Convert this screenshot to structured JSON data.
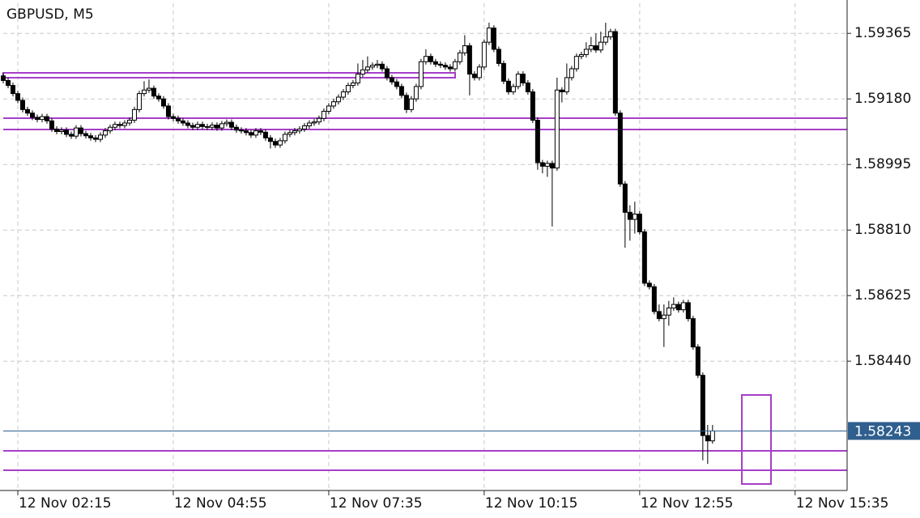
{
  "chart_data": {
    "type": "candlestick",
    "title": "GBPUSD, M5",
    "open": [
      1.59245,
      1.59232,
      1.59218,
      1.59195,
      1.59176,
      1.5915,
      1.5914,
      1.59128,
      1.59122,
      1.5913,
      1.59118,
      1.59095,
      1.59088,
      1.59092,
      1.5908,
      1.59075,
      1.59098,
      1.59082,
      1.59076,
      1.5907,
      1.59066,
      1.59078,
      1.5909,
      1.591,
      1.59108,
      1.59105,
      1.59112,
      1.5912,
      1.5915,
      1.59195,
      1.59205,
      1.5921,
      1.59188,
      1.5918,
      1.5916,
      1.5913,
      1.59125,
      1.59118,
      1.59112,
      1.59105,
      1.591,
      1.59108,
      1.59102,
      1.591,
      1.59106,
      1.59098,
      1.5911,
      1.59114,
      1.591,
      1.59092,
      1.5909,
      1.59085,
      1.59078,
      1.5909,
      1.59086,
      1.5907,
      1.5906,
      1.5905,
      1.59062,
      1.5908,
      1.59085,
      1.5909,
      1.59095,
      1.59104,
      1.59112,
      1.59115,
      1.59125,
      1.59145,
      1.5916,
      1.59172,
      1.59185,
      1.592,
      1.59218,
      1.59225,
      1.5925,
      1.59262,
      1.5927,
      1.59275,
      1.59278,
      1.59265,
      1.5924,
      1.59228,
      1.59215,
      1.5919,
      1.5915,
      1.5918,
      1.59215,
      1.59285,
      1.593,
      1.59285,
      1.59278,
      1.59275,
      1.5927,
      1.59265,
      1.59285,
      1.5931,
      1.5933,
      1.5925,
      1.5924,
      1.5927,
      1.5934,
      1.5938,
      1.5932,
      1.5928,
      1.5923,
      1.592,
      1.59215,
      1.5925,
      1.59225,
      1.592,
      1.5912,
      1.59,
      1.5899,
      1.58998,
      1.58985,
      1.59205,
      1.592,
      1.5924,
      1.59265,
      1.593,
      1.59305,
      1.5932,
      1.5933,
      1.59318,
      1.5934,
      1.59355,
      1.5937,
      1.5914,
      1.5894,
      1.5886,
      1.5884,
      1.58855,
      1.58805,
      1.5866,
      1.5865,
      1.5858,
      1.5856,
      1.5857,
      1.5859,
      1.586,
      1.58585,
      1.58605,
      1.5856,
      1.5848,
      1.584,
      1.5823,
      1.58215
    ],
    "high": [
      1.59253,
      1.5924,
      1.59226,
      1.59203,
      1.59184,
      1.59158,
      1.59148,
      1.59136,
      1.59138,
      1.59138,
      1.59126,
      1.59103,
      1.591,
      1.591,
      1.59088,
      1.59106,
      1.59106,
      1.5909,
      1.59084,
      1.59078,
      1.59086,
      1.59098,
      1.59108,
      1.59116,
      1.59116,
      1.5912,
      1.59128,
      1.59158,
      1.59203,
      1.5923,
      1.59235,
      1.59218,
      1.59196,
      1.59188,
      1.59168,
      1.59138,
      1.59133,
      1.59126,
      1.5912,
      1.59113,
      1.59116,
      1.59116,
      1.5911,
      1.59114,
      1.59114,
      1.59118,
      1.59122,
      1.59122,
      1.59108,
      1.591,
      1.59098,
      1.59093,
      1.59098,
      1.59098,
      1.59094,
      1.59078,
      1.59068,
      1.5907,
      1.59088,
      1.59093,
      1.59098,
      1.59103,
      1.59112,
      1.5912,
      1.59123,
      1.59133,
      1.59153,
      1.59168,
      1.5918,
      1.59193,
      1.59208,
      1.59226,
      1.59233,
      1.5928,
      1.5929,
      1.593,
      1.59283,
      1.5929,
      1.59286,
      1.59273,
      1.59248,
      1.59236,
      1.59223,
      1.59198,
      1.59188,
      1.59223,
      1.59293,
      1.5932,
      1.59308,
      1.59293,
      1.59286,
      1.59283,
      1.59278,
      1.59293,
      1.59318,
      1.5936,
      1.59338,
      1.59258,
      1.59278,
      1.59348,
      1.59395,
      1.59388,
      1.59328,
      1.59288,
      1.59238,
      1.59223,
      1.59258,
      1.59258,
      1.59233,
      1.59208,
      1.59128,
      1.59008,
      1.59006,
      1.59006,
      1.5924,
      1.59213,
      1.5928,
      1.59273,
      1.59308,
      1.59313,
      1.5934,
      1.59355,
      1.59365,
      1.5937,
      1.59395,
      1.59378,
      1.59378,
      1.59148,
      1.58948,
      1.5888,
      1.5889,
      1.58863,
      1.58813,
      1.58668,
      1.58658,
      1.586,
      1.586,
      1.5861,
      1.5862,
      1.58608,
      1.58613,
      1.58613,
      1.58568,
      1.58488,
      1.58408,
      1.5826,
      1.5826
    ],
    "low": [
      1.59224,
      1.5921,
      1.59187,
      1.59168,
      1.59142,
      1.59132,
      1.5912,
      1.59114,
      1.59114,
      1.5911,
      1.59087,
      1.5908,
      1.5908,
      1.59072,
      1.59067,
      1.59067,
      1.59074,
      1.59068,
      1.59062,
      1.59058,
      1.59058,
      1.5907,
      1.59082,
      1.59092,
      1.59097,
      1.59097,
      1.59104,
      1.59112,
      1.59142,
      1.59187,
      1.59197,
      1.5918,
      1.59172,
      1.59152,
      1.59122,
      1.59117,
      1.5911,
      1.59104,
      1.59097,
      1.59092,
      1.59092,
      1.59094,
      1.59092,
      1.59092,
      1.5909,
      1.5909,
      1.59102,
      1.59092,
      1.59084,
      1.59082,
      1.59077,
      1.5907,
      1.5907,
      1.59078,
      1.59062,
      1.5904,
      1.59042,
      1.59042,
      1.59054,
      1.59072,
      1.59077,
      1.59082,
      1.59087,
      1.59096,
      1.59104,
      1.59107,
      1.59117,
      1.59137,
      1.59152,
      1.59164,
      1.59177,
      1.59192,
      1.5921,
      1.59217,
      1.59242,
      1.59254,
      1.59262,
      1.59267,
      1.59257,
      1.59232,
      1.5922,
      1.59207,
      1.59182,
      1.5914,
      1.59142,
      1.59172,
      1.59207,
      1.59277,
      1.59277,
      1.5927,
      1.59267,
      1.59262,
      1.59257,
      1.59257,
      1.59277,
      1.59302,
      1.5919,
      1.59232,
      1.59232,
      1.59262,
      1.59332,
      1.59312,
      1.59272,
      1.59222,
      1.59192,
      1.59192,
      1.59207,
      1.59217,
      1.59192,
      1.59112,
      1.5898,
      1.5897,
      1.5896,
      1.5882,
      1.58977,
      1.5917,
      1.59192,
      1.59232,
      1.59257,
      1.59292,
      1.59297,
      1.59312,
      1.5931,
      1.5931,
      1.59332,
      1.59347,
      1.59132,
      1.58932,
      1.5876,
      1.5878,
      1.588,
      1.58797,
      1.58652,
      1.58642,
      1.58572,
      1.58552,
      1.5848,
      1.5854,
      1.58582,
      1.58577,
      1.58577,
      1.58552,
      1.58472,
      1.58392,
      1.5816,
      1.5815,
      1.58207
    ],
    "close": [
      1.59232,
      1.59218,
      1.59195,
      1.59176,
      1.5915,
      1.5914,
      1.59128,
      1.59122,
      1.5913,
      1.59118,
      1.59095,
      1.59088,
      1.59092,
      1.5908,
      1.59075,
      1.59098,
      1.59082,
      1.59076,
      1.5907,
      1.59066,
      1.59078,
      1.5909,
      1.591,
      1.59108,
      1.59105,
      1.59112,
      1.5912,
      1.5915,
      1.59195,
      1.59205,
      1.5921,
      1.59188,
      1.5918,
      1.5916,
      1.5913,
      1.59125,
      1.59118,
      1.59112,
      1.59105,
      1.591,
      1.59108,
      1.59102,
      1.591,
      1.59106,
      1.59098,
      1.5911,
      1.59114,
      1.591,
      1.59092,
      1.5909,
      1.59085,
      1.59078,
      1.5909,
      1.59086,
      1.5907,
      1.5906,
      1.5905,
      1.59062,
      1.5908,
      1.59085,
      1.5909,
      1.59095,
      1.59104,
      1.59112,
      1.59115,
      1.59125,
      1.59145,
      1.5916,
      1.59172,
      1.59185,
      1.592,
      1.59218,
      1.59225,
      1.5925,
      1.59262,
      1.5927,
      1.59275,
      1.59278,
      1.59265,
      1.5924,
      1.59228,
      1.59215,
      1.5919,
      1.5915,
      1.5918,
      1.59215,
      1.59285,
      1.593,
      1.59285,
      1.59278,
      1.59275,
      1.5927,
      1.59265,
      1.59285,
      1.5931,
      1.5933,
      1.5925,
      1.5924,
      1.5927,
      1.5934,
      1.5938,
      1.5932,
      1.5928,
      1.5923,
      1.592,
      1.59215,
      1.5925,
      1.59225,
      1.592,
      1.5912,
      1.59,
      1.5899,
      1.58998,
      1.58985,
      1.59205,
      1.592,
      1.5924,
      1.59265,
      1.593,
      1.59305,
      1.5932,
      1.5933,
      1.59318,
      1.5934,
      1.59355,
      1.5937,
      1.5914,
      1.5894,
      1.5886,
      1.5884,
      1.58855,
      1.58805,
      1.5866,
      1.5865,
      1.5858,
      1.5856,
      1.5857,
      1.5859,
      1.586,
      1.58585,
      1.58605,
      1.5856,
      1.5848,
      1.584,
      1.5823,
      1.58215,
      1.58243
    ],
    "up_color": "#ffffff",
    "down_color": "#000000",
    "wick_color": "#000000",
    "last_price": 1.58243,
    "last_price_color": "#2f5f8e",
    "ylim": [
      1.58075,
      1.5945
    ],
    "yticks": [
      {
        "value": 1.5844,
        "label": "1.58440"
      },
      1.58625,
      {
        "value": 1.5881,
        "label": "1.58810"
      },
      1.58995,
      {
        "value": 1.5918,
        "label": "1.59180"
      },
      1.59365
    ],
    "xlim": [
      0,
      173.7
    ],
    "xticks": [
      {
        "value": 3,
        "label": "12 Nov 02:15"
      },
      {
        "value": 35,
        "label": "12 Nov 04:55"
      },
      {
        "value": 67,
        "label": "12 Nov 07:35"
      },
      {
        "value": 99,
        "label": "12 Nov 10:15"
      },
      {
        "value": 131,
        "label": "12 Nov 12:55"
      },
      {
        "value": 163,
        "label": "12 Nov 15:35"
      }
    ],
    "grid": true
  }
}
